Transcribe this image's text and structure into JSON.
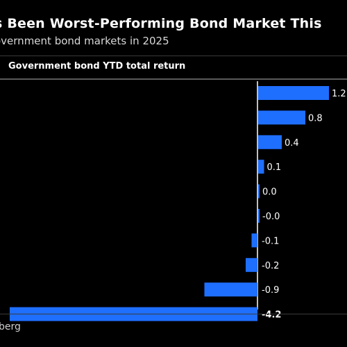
{
  "header": {
    "title": "s Been Worst-Performing Bond Market This",
    "subtitle": "overnment bond markets in 2025"
  },
  "footer": {
    "source": "berg"
  },
  "colors": {
    "background": "#000000",
    "bar": "#1f6fff",
    "zero_line": "#ffffff",
    "text": "#ffffff"
  },
  "chart_data": {
    "type": "bar",
    "orientation": "horizontal",
    "legend": "Government bond YTD total return",
    "values": [
      1.2,
      0.8,
      0.4,
      0.1,
      0.0,
      -0.0,
      -0.1,
      -0.2,
      -0.9,
      -4.2
    ],
    "value_labels": [
      "1.2",
      "0.8",
      "0.4",
      "0.1",
      "0.0",
      "-0.0",
      "-0.1",
      "-0.2",
      "-0.9",
      "-4.2"
    ],
    "xlim": [
      -4.2,
      1.2
    ],
    "grid": false
  }
}
